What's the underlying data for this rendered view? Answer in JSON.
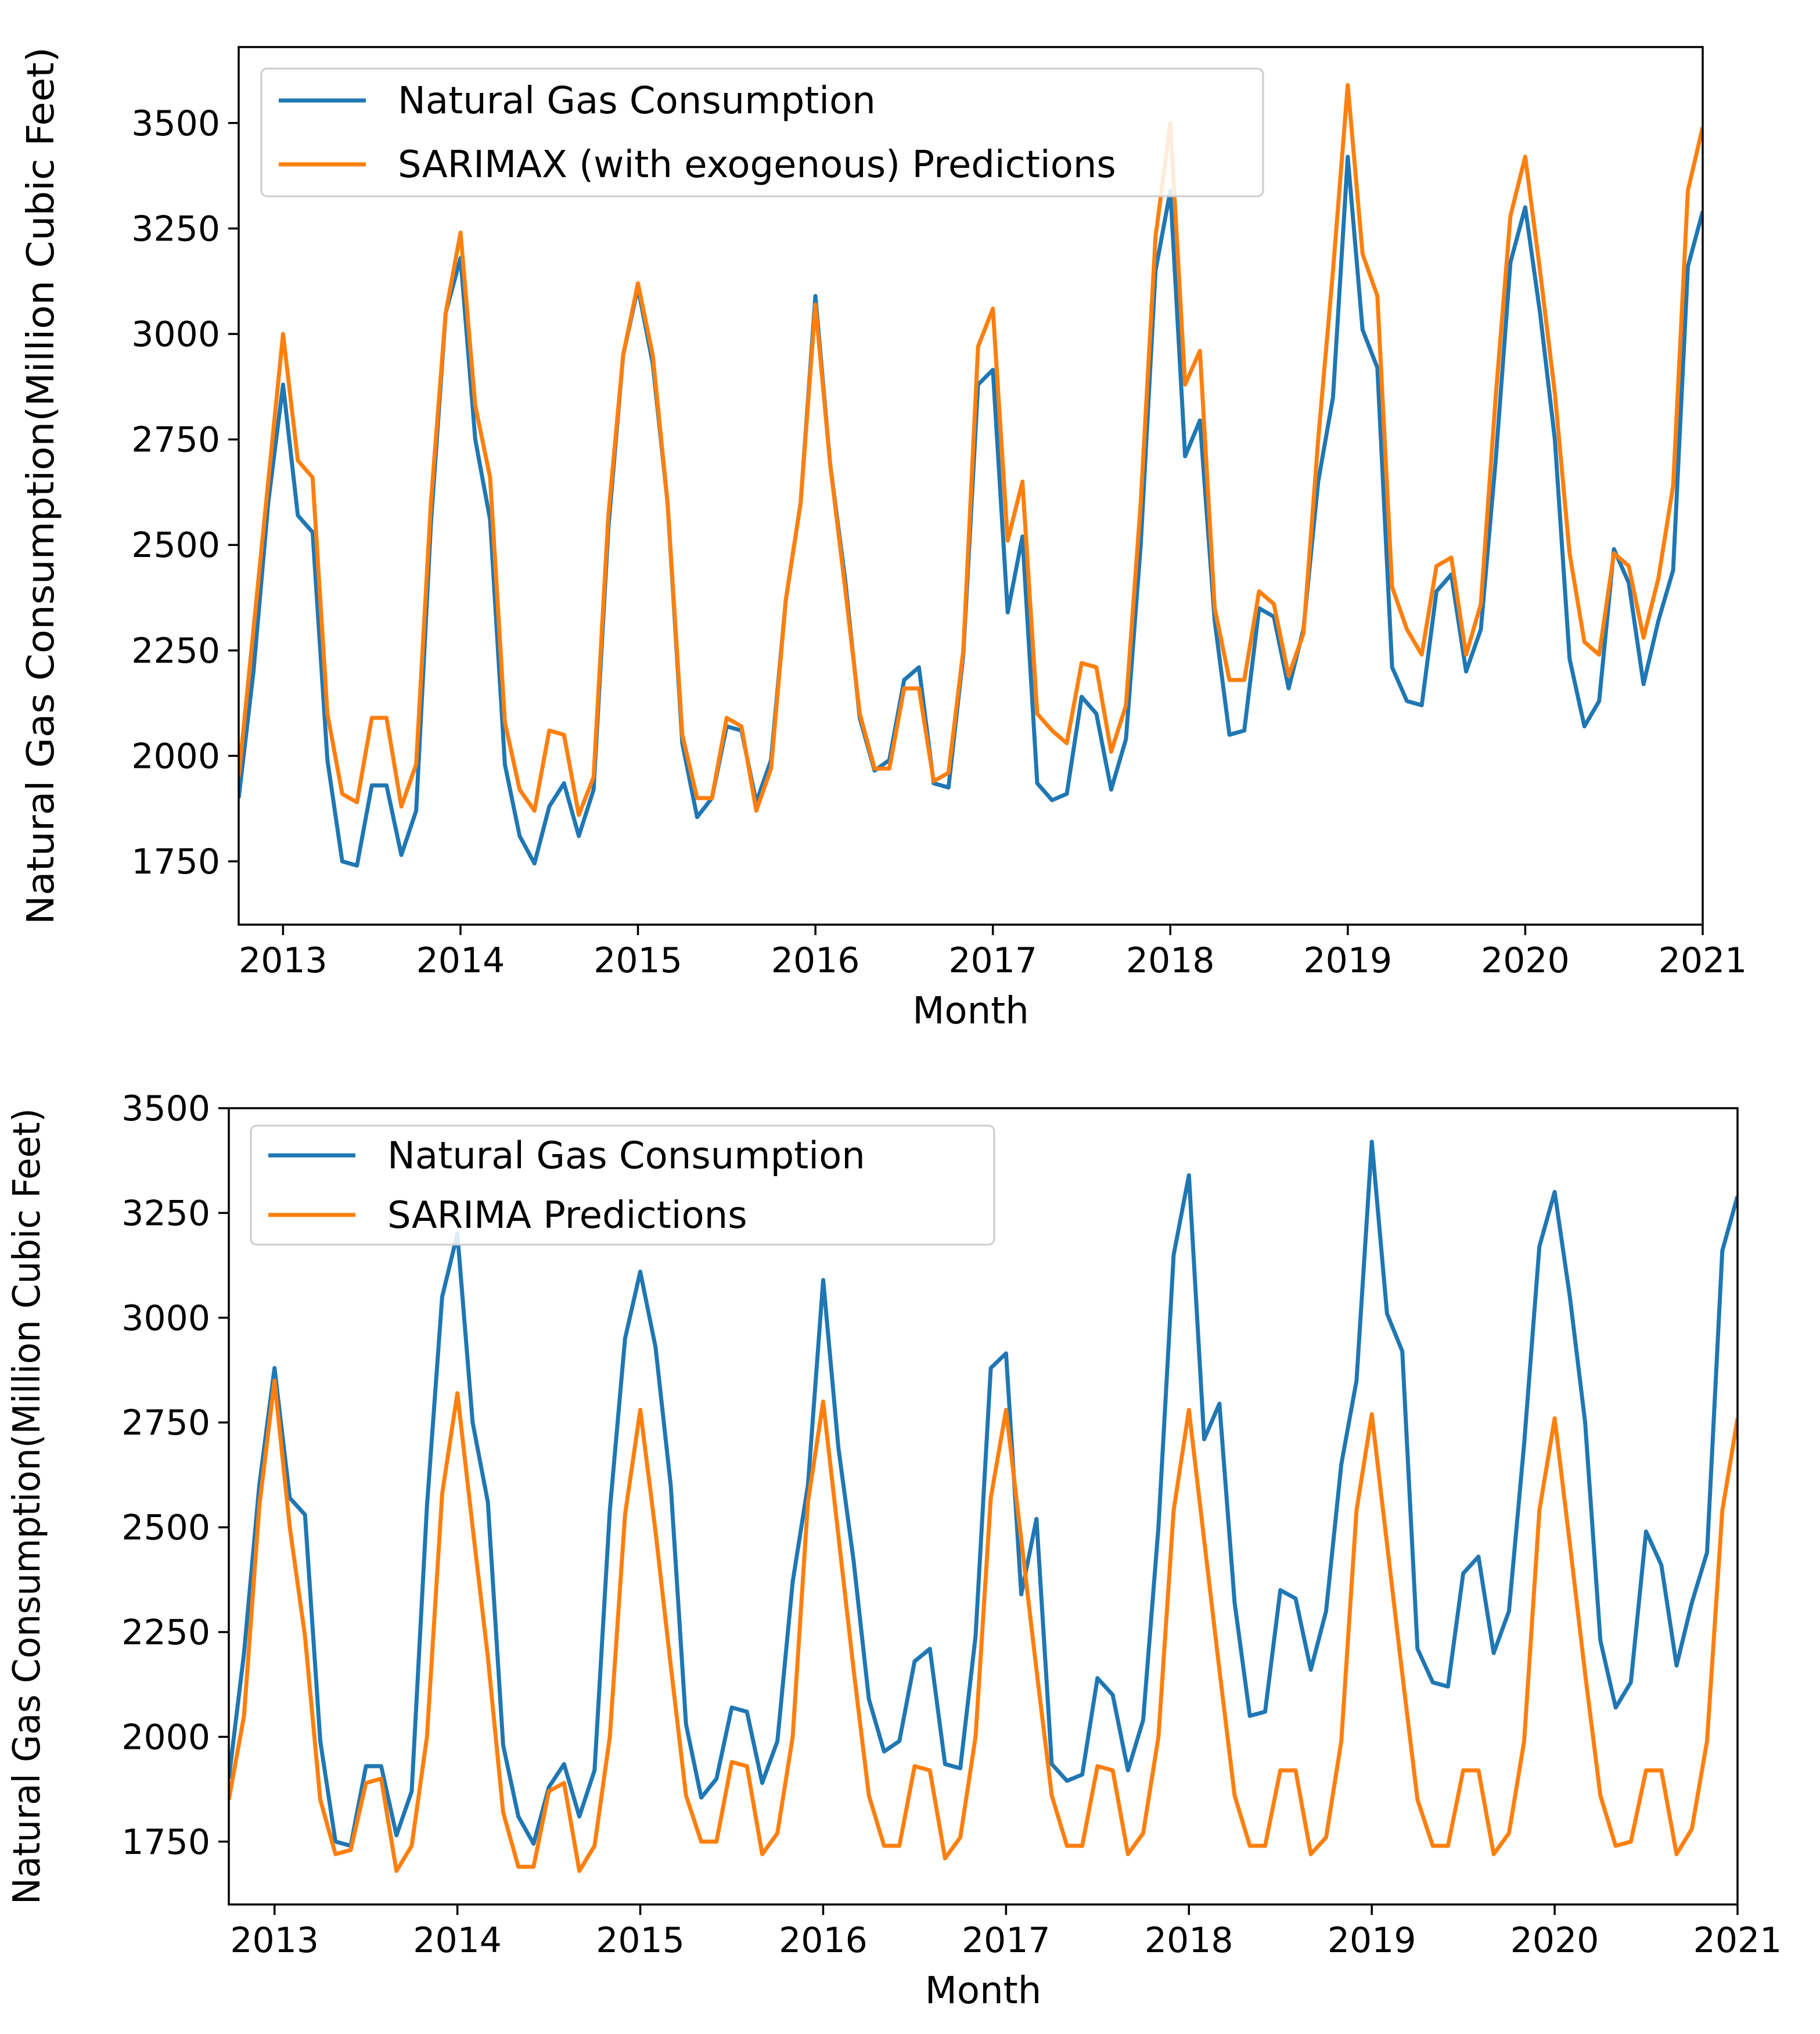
{
  "chart_data": [
    {
      "type": "line",
      "xlabel": "Month",
      "ylabel": "Natural Gas Consumption(Million Cubic Feet)",
      "xlim": [
        2012.75,
        2021.0
      ],
      "ylim": [
        1600,
        3680
      ],
      "xticks": [
        2013,
        2014,
        2015,
        2016,
        2017,
        2018,
        2019,
        2020,
        2021
      ],
      "xtick_labels": [
        "2013",
        "2014",
        "2015",
        "2016",
        "2017",
        "2018",
        "2019",
        "2020",
        "2021"
      ],
      "yticks": [
        1750,
        2000,
        2250,
        2500,
        2750,
        3000,
        3250,
        3500
      ],
      "ytick_labels": [
        "1750",
        "2000",
        "2250",
        "2500",
        "2750",
        "3000",
        "3250",
        "3500"
      ],
      "grid": false,
      "legend": "top-left",
      "series": [
        {
          "name": "Natural Gas Consumption",
          "color": "#1f77b4",
          "x_start": 2012.75,
          "x_step_months": 1,
          "values": [
            1900,
            2200,
            2600,
            2880,
            2570,
            2530,
            1990,
            1750,
            1740,
            1930,
            1930,
            1765,
            1870,
            2550,
            3050,
            3180,
            2750,
            2560,
            1980,
            1810,
            1745,
            1880,
            1935,
            1810,
            1920,
            2540,
            2950,
            3110,
            2930,
            2600,
            2030,
            1855,
            1900,
            2070,
            2060,
            1890,
            1990,
            2370,
            2600,
            3090,
            2690,
            2420,
            2090,
            1965,
            1990,
            2180,
            2210,
            1935,
            1925,
            2240,
            2880,
            2915,
            2340,
            2520,
            1935,
            1895,
            1910,
            2140,
            2100,
            1920,
            2040,
            2500,
            3150,
            3340,
            2710,
            2795,
            2320,
            2050,
            2060,
            2350,
            2330,
            2160,
            2300,
            2650,
            2850,
            3420,
            3010,
            2920,
            2210,
            2130,
            2120,
            2390,
            2430,
            2200,
            2300,
            2700,
            3170,
            3300,
            3050,
            2750,
            2230,
            2070,
            2130,
            2490,
            2410,
            2170,
            2320,
            2440,
            3160,
            3290
          ]
        },
        {
          "name": "SARIMAX (with exogenous) Predictions",
          "color": "#ff7f0e",
          "x_start": 2012.75,
          "x_step_months": 1,
          "values": [
            1950,
            2300,
            2650,
            3000,
            2700,
            2660,
            2100,
            1910,
            1890,
            2090,
            2090,
            1880,
            1980,
            2600,
            3050,
            3240,
            2830,
            2660,
            2080,
            1920,
            1870,
            2060,
            2050,
            1860,
            1950,
            2570,
            2950,
            3120,
            2950,
            2600,
            2050,
            1900,
            1900,
            2090,
            2070,
            1870,
            1970,
            2370,
            2600,
            3070,
            2690,
            2400,
            2100,
            1970,
            1970,
            2160,
            2160,
            1940,
            1960,
            2250,
            2970,
            3060,
            2510,
            2650,
            2100,
            2060,
            2030,
            2220,
            2210,
            2010,
            2120,
            2600,
            3230,
            3500,
            2880,
            2960,
            2350,
            2180,
            2180,
            2390,
            2360,
            2190,
            2290,
            2750,
            3150,
            3590,
            3190,
            3090,
            2400,
            2300,
            2240,
            2450,
            2470,
            2240,
            2360,
            2850,
            3280,
            3420,
            3150,
            2860,
            2480,
            2270,
            2240,
            2480,
            2450,
            2280,
            2420,
            2640,
            3340,
            3490
          ]
        }
      ]
    },
    {
      "type": "line",
      "xlabel": "Month",
      "ylabel": "Natural Gas Consumption(Million Cubic Feet)",
      "xlim": [
        2012.75,
        2021.0
      ],
      "ylim": [
        1600,
        3500
      ],
      "xticks": [
        2013,
        2014,
        2015,
        2016,
        2017,
        2018,
        2019,
        2020,
        2021
      ],
      "xtick_labels": [
        "2013",
        "2014",
        "2015",
        "2016",
        "2017",
        "2018",
        "2019",
        "2020",
        "2021"
      ],
      "yticks": [
        1750,
        2000,
        2250,
        2500,
        2750,
        3000,
        3250,
        3500
      ],
      "ytick_labels": [
        "1750",
        "2000",
        "2250",
        "2500",
        "2750",
        "3000",
        "3250",
        "3500"
      ],
      "grid": false,
      "legend": "top-left",
      "series": [
        {
          "name": "Natural Gas Consumption",
          "color": "#1f77b4",
          "x_start": 2012.75,
          "x_step_months": 1,
          "values": [
            1900,
            2200,
            2600,
            2880,
            2570,
            2530,
            1990,
            1750,
            1740,
            1930,
            1930,
            1765,
            1870,
            2550,
            3050,
            3200,
            2750,
            2560,
            1980,
            1810,
            1745,
            1880,
            1935,
            1810,
            1920,
            2540,
            2950,
            3110,
            2930,
            2600,
            2030,
            1855,
            1900,
            2070,
            2060,
            1890,
            1990,
            2370,
            2600,
            3090,
            2690,
            2420,
            2090,
            1965,
            1990,
            2180,
            2210,
            1935,
            1925,
            2240,
            2880,
            2915,
            2340,
            2520,
            1935,
            1895,
            1910,
            2140,
            2100,
            1920,
            2040,
            2500,
            3150,
            3340,
            2710,
            2795,
            2320,
            2050,
            2060,
            2350,
            2330,
            2160,
            2300,
            2650,
            2850,
            3420,
            3010,
            2920,
            2210,
            2130,
            2120,
            2390,
            2430,
            2200,
            2300,
            2700,
            3170,
            3300,
            3050,
            2750,
            2230,
            2070,
            2130,
            2490,
            2410,
            2170,
            2320,
            2440,
            3160,
            3290
          ]
        },
        {
          "name": "SARIMA Predictions",
          "color": "#ff7f0e",
          "x_start": 2012.75,
          "x_step_months": 1,
          "values": [
            1850,
            2050,
            2550,
            2850,
            2500,
            2240,
            1850,
            1720,
            1730,
            1890,
            1900,
            1680,
            1740,
            2000,
            2580,
            2820,
            2500,
            2190,
            1820,
            1690,
            1690,
            1870,
            1890,
            1680,
            1740,
            2000,
            2530,
            2780,
            2490,
            2170,
            1860,
            1750,
            1750,
            1940,
            1930,
            1720,
            1770,
            2000,
            2560,
            2800,
            2480,
            2160,
            1860,
            1740,
            1740,
            1930,
            1920,
            1710,
            1760,
            2000,
            2570,
            2780,
            2470,
            2160,
            1860,
            1740,
            1740,
            1930,
            1920,
            1720,
            1770,
            2000,
            2540,
            2780,
            2470,
            2160,
            1860,
            1740,
            1740,
            1920,
            1920,
            1720,
            1760,
            1990,
            2540,
            2770,
            2460,
            2150,
            1850,
            1740,
            1740,
            1920,
            1920,
            1720,
            1770,
            1990,
            2540,
            2760,
            2460,
            2150,
            1860,
            1740,
            1750,
            1920,
            1920,
            1720,
            1780,
            1990,
            2540,
            2760
          ]
        }
      ]
    }
  ]
}
